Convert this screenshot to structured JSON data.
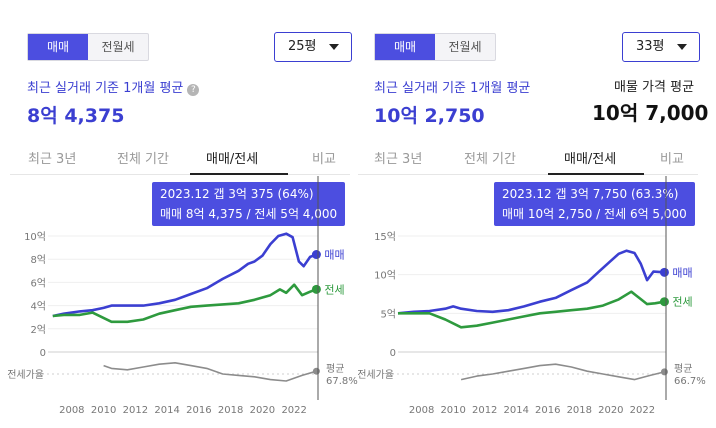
{
  "panels": [
    {
      "toggle": {
        "options": [
          "매매",
          "전월세"
        ],
        "active": 0
      },
      "size_select": {
        "value": "25평"
      },
      "avg_label": "최근 실거래 기준 1개월 평균",
      "help_icon": "question-circle-icon",
      "avg_price": "8억 4,375",
      "tabs": [
        "최근 3년",
        "전체 기간",
        "매매/전세",
        "비교"
      ],
      "active_tab": 2,
      "tooltip": {
        "line1": "2023.12  갭 3억 375 (64%)",
        "line2": "매매 8억 4,375 / 전세 5억 4,000"
      }
    },
    {
      "toggle": {
        "options": [
          "매매",
          "전월세"
        ],
        "active": 0
      },
      "size_select": {
        "value": "33평"
      },
      "avg_label": "최근 실거래 기준 1개월 평균",
      "avg_price": "10억 2,750",
      "listing_label": "매물 가격 평균",
      "listing_price": "10억 7,000",
      "tabs": [
        "최근 3년",
        "전체 기간",
        "매매/전세",
        "비교"
      ],
      "active_tab": 2,
      "tooltip": {
        "line1": "2023.12  갭 3억 7,750 (63.3%)",
        "line2": "매매 10억 2,750 / 전세 6억 5,000"
      }
    }
  ],
  "colors": {
    "accent": "#4c4ee0",
    "sale": "#3b3fd1",
    "jeonse": "#2e9a3e",
    "ratio": "#8c8c8c"
  },
  "chart_data": [
    {
      "type": "line",
      "x_ticks": [
        "2008",
        "2010",
        "2012",
        "2014",
        "2016",
        "2018",
        "2020",
        "2022"
      ],
      "y_ticks": [
        "0",
        "2억",
        "4억",
        "6억",
        "8억",
        "10억"
      ],
      "ylim": [
        0,
        10
      ],
      "ratio_axis_label": "전세가율",
      "ratio_end_label": "평균",
      "ratio_end_value": "67.8%",
      "series": [
        {
          "name": "매매",
          "x": [
            2007.3,
            2008,
            2009,
            2009.8,
            2010.5,
            2011,
            2012,
            2013,
            2014,
            2015,
            2016,
            2017,
            2018,
            2019,
            2019.6,
            2020,
            2020.5,
            2021,
            2021.5,
            2022,
            2022.4,
            2022.8,
            2023.1,
            2023.5,
            2023.9
          ],
          "y": [
            3.1,
            3.3,
            3.5,
            3.6,
            3.8,
            4.0,
            4.0,
            4.0,
            4.2,
            4.5,
            5.0,
            5.5,
            6.3,
            7.0,
            7.6,
            7.8,
            8.3,
            9.3,
            10.0,
            10.2,
            9.9,
            7.8,
            7.4,
            8.2,
            8.4
          ]
        },
        {
          "name": "전세",
          "x": [
            2007.3,
            2008,
            2009,
            2009.8,
            2011,
            2012,
            2013,
            2014,
            2015,
            2016,
            2017,
            2018,
            2019,
            2020,
            2021,
            2021.6,
            2022,
            2022.5,
            2023,
            2023.5,
            2023.9
          ],
          "y": [
            3.1,
            3.2,
            3.2,
            3.4,
            2.6,
            2.6,
            2.8,
            3.3,
            3.6,
            3.9,
            4.0,
            4.1,
            4.2,
            4.5,
            4.9,
            5.4,
            5.1,
            5.8,
            4.9,
            5.2,
            5.4
          ]
        },
        {
          "name": "전세가율",
          "x": [
            2010.5,
            2011,
            2012,
            2013,
            2014,
            2015,
            2016,
            2017,
            2018,
            2019,
            2020,
            2021,
            2022,
            2023,
            2023.9
          ],
          "y": [
            72,
            68,
            66,
            70,
            74,
            76,
            72,
            68,
            60,
            58,
            56,
            52,
            50,
            58,
            64
          ]
        }
      ]
    },
    {
      "type": "line",
      "x_ticks": [
        "2008",
        "2010",
        "2012",
        "2014",
        "2016",
        "2018",
        "2020",
        "2022"
      ],
      "y_ticks": [
        "0",
        "5억",
        "10억",
        "15억"
      ],
      "ylim": [
        0,
        15
      ],
      "ratio_axis_label": "전세가율",
      "ratio_end_label": "평균",
      "ratio_end_value": "66.7%",
      "series": [
        {
          "name": "매매",
          "x": [
            2007,
            2008,
            2009,
            2010,
            2010.5,
            2011,
            2012,
            2013,
            2014,
            2015,
            2016,
            2017,
            2018,
            2019,
            2019.8,
            2020.4,
            2021,
            2021.5,
            2022,
            2022.4,
            2022.8,
            2023.2,
            2023.9
          ],
          "y": [
            5.0,
            5.2,
            5.3,
            5.6,
            5.9,
            5.6,
            5.3,
            5.2,
            5.4,
            5.9,
            6.5,
            7.0,
            8.0,
            9.0,
            10.5,
            11.6,
            12.7,
            13.1,
            12.8,
            11.4,
            9.3,
            10.4,
            10.3
          ]
        },
        {
          "name": "전세",
          "x": [
            2007,
            2008,
            2009,
            2010,
            2011,
            2012,
            2013,
            2014,
            2015,
            2016,
            2017,
            2018,
            2019,
            2020,
            2021,
            2021.8,
            2022.3,
            2022.8,
            2023.3,
            2023.9
          ],
          "y": [
            5.0,
            5.0,
            5.0,
            4.2,
            3.2,
            3.4,
            3.8,
            4.2,
            4.6,
            5.0,
            5.2,
            5.4,
            5.6,
            6.0,
            6.8,
            7.8,
            7.0,
            6.2,
            6.3,
            6.5
          ]
        },
        {
          "name": "전세가율",
          "x": [
            2011,
            2012,
            2013,
            2014,
            2015,
            2016,
            2017,
            2018,
            2019,
            2020,
            2021,
            2022,
            2023,
            2023.9
          ],
          "y": [
            52,
            57,
            60,
            64,
            68,
            72,
            74,
            70,
            64,
            60,
            56,
            52,
            58,
            63
          ]
        }
      ]
    }
  ]
}
